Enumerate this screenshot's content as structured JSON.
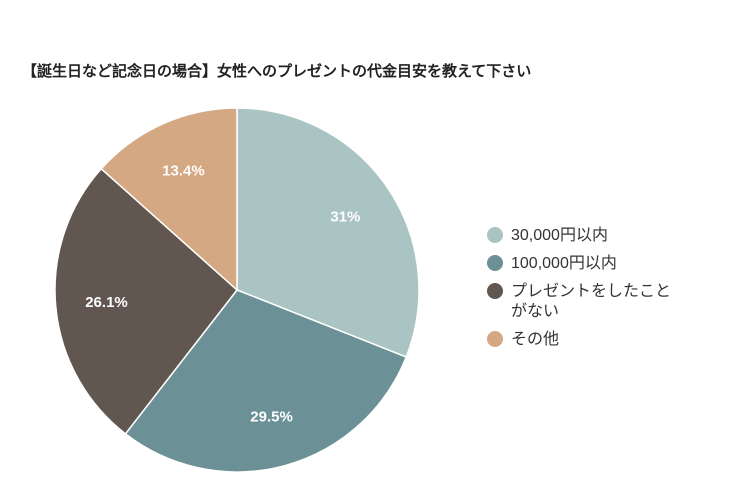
{
  "chart_data": {
    "type": "pie",
    "title": "【誕生日など記念日の場合】女性へのプレゼントの代金目安を教えて下さい",
    "categories": [
      "30,000円以内",
      "100,000円以内",
      "プレゼントをしたことがない",
      "その他"
    ],
    "values": [
      31,
      29.5,
      26.1,
      13.4
    ],
    "value_labels": [
      "31%",
      "29.5%",
      "26.1%",
      "13.4%"
    ],
    "colors": [
      "#a9c4c2",
      "#6b9096",
      "#615650",
      "#d4a882"
    ],
    "legend_position": "right",
    "start_angle_deg": 0,
    "direction": "clockwise"
  },
  "legend": {
    "items": [
      {
        "label": "30,000円以内",
        "color": "#a9c4c2"
      },
      {
        "label": "100,000円以内",
        "color": "#6b9096"
      },
      {
        "label": "プレゼントをしたことがない",
        "color": "#615650"
      },
      {
        "label": "その他",
        "color": "#d4a882"
      }
    ]
  }
}
